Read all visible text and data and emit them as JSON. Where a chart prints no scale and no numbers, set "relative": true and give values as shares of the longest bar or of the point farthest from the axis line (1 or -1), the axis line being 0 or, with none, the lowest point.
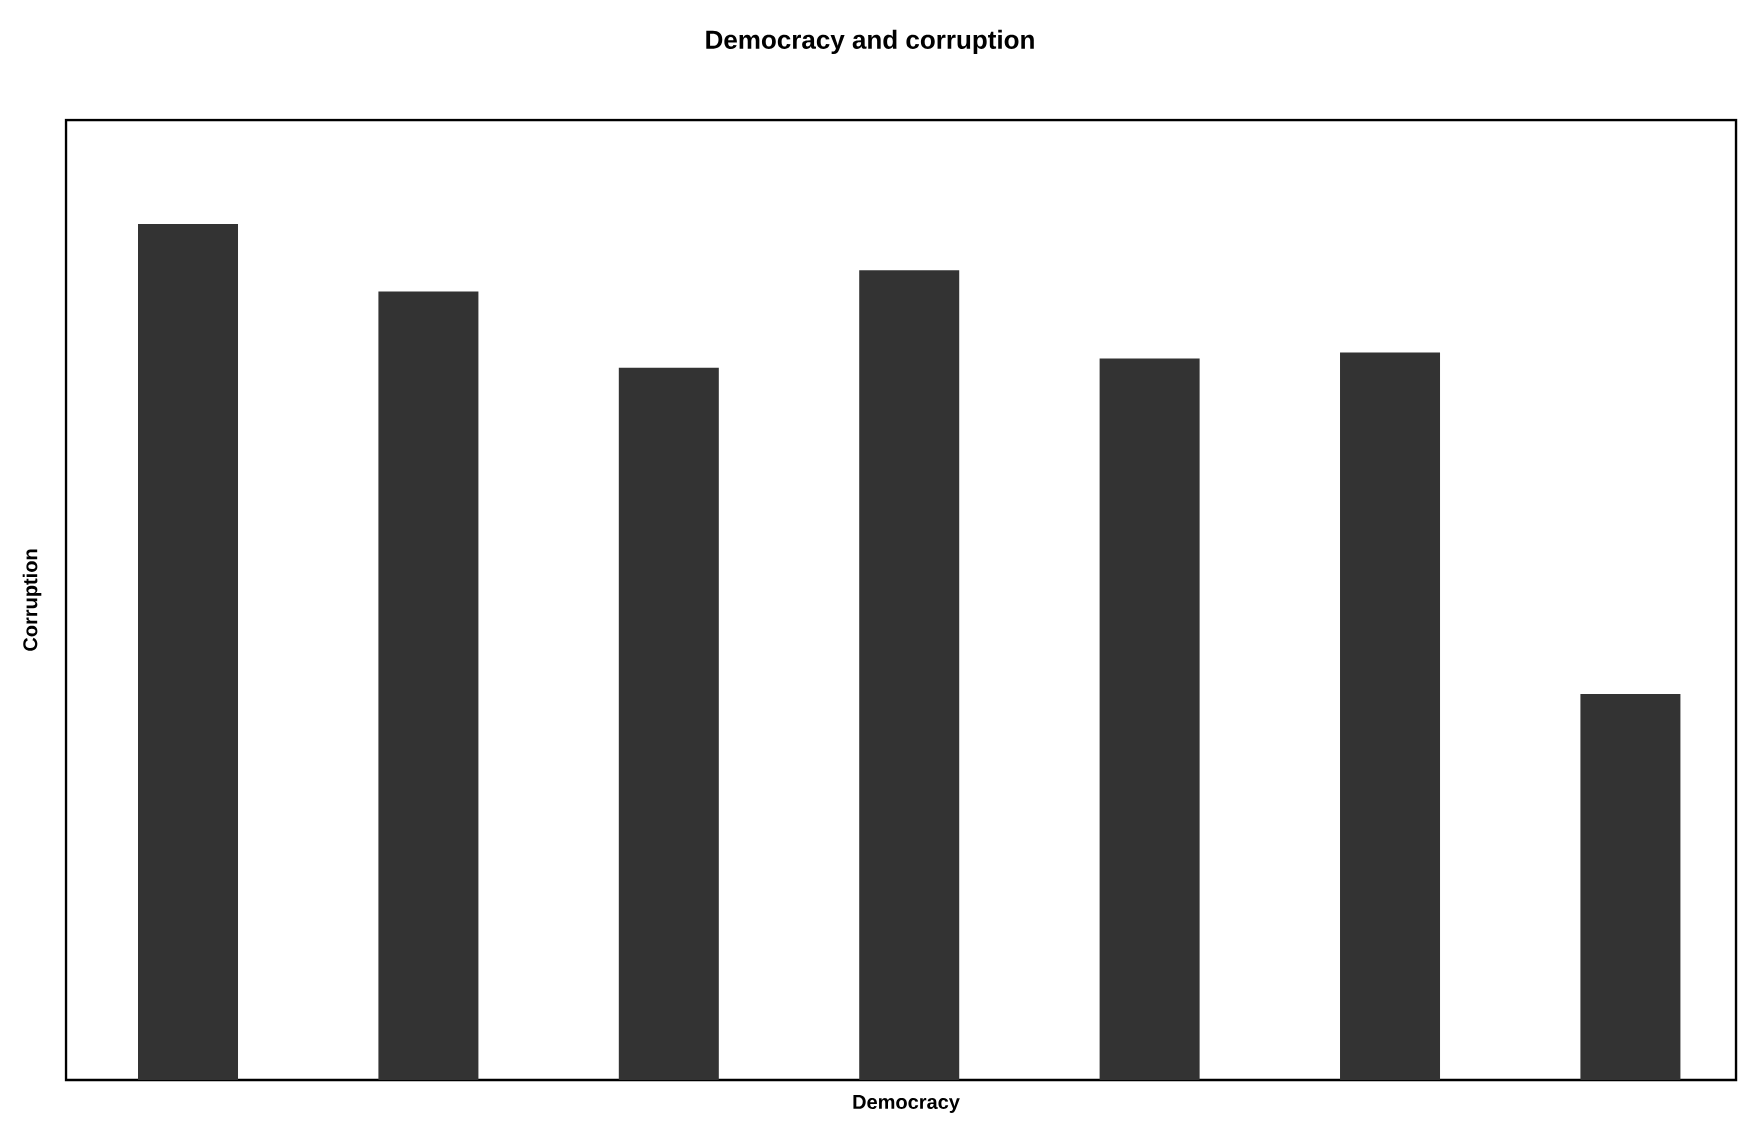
{
  "chart_data": {
    "type": "bar",
    "title": "Democracy and corruption",
    "xlabel": "Democracy",
    "ylabel": "Corruption",
    "relative": true,
    "color": "#333333",
    "categories": [
      null,
      null,
      null,
      null,
      null,
      null,
      null
    ],
    "values": [
      1,
      0.921,
      0.832,
      0.946,
      0.843,
      0.85,
      0.451
    ]
  }
}
